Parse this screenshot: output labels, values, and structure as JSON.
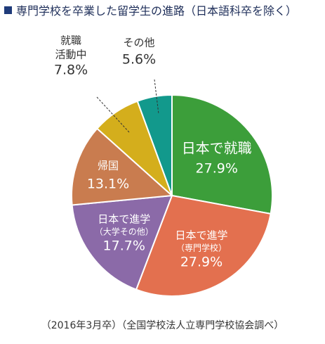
{
  "title": "専門学校を卒業した留学生の進路（日本語科卒を除く）",
  "source": "（2016年3月卒）（全国学校法人立専門学校協会調べ）",
  "chart_data": {
    "type": "pie",
    "title": "専門学校を卒業した留学生の進路（日本語科卒を除く）",
    "start": "12 o'clock",
    "direction": "clockwise",
    "slices": [
      {
        "lines": [
          "日本で就職"
        ],
        "value": 27.9,
        "label": "27.9%",
        "color": "#3c9e3a",
        "label_position": "inside"
      },
      {
        "lines": [
          "日本で進学",
          "（専門学校）"
        ],
        "value": 27.9,
        "label": "27.9%",
        "color": "#e3704f",
        "label_position": "inside"
      },
      {
        "lines": [
          "日本で進学",
          "（大学その他）"
        ],
        "value": 17.7,
        "label": "17.7%",
        "color": "#8b6aa8",
        "label_position": "inside"
      },
      {
        "lines": [
          "帰国"
        ],
        "value": 13.1,
        "label": "13.1%",
        "color": "#c97c4f",
        "label_position": "inside"
      },
      {
        "lines": [
          "就職",
          "活動中"
        ],
        "value": 7.8,
        "label": "7.8%",
        "color": "#d4ae1c",
        "label_position": "outside"
      },
      {
        "lines": [
          "その他"
        ],
        "value": 5.6,
        "label": "5.6%",
        "color": "#12998c",
        "label_position": "outside"
      }
    ]
  }
}
